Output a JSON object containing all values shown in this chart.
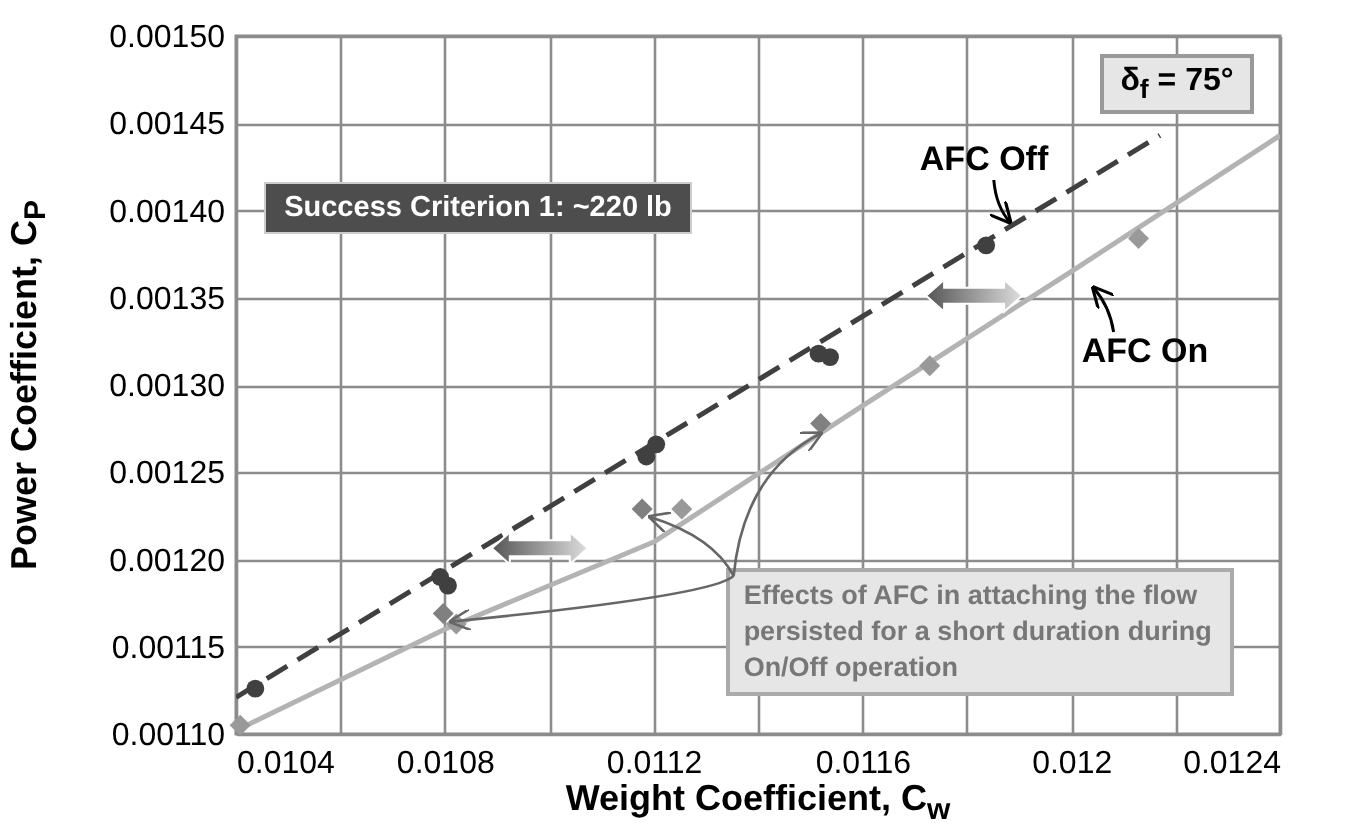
{
  "chart_data": {
    "type": "scatter",
    "xlabel": "Weight Coefficient, C$_{w}$",
    "ylabel": "Power Coefficient, C$_{P}$",
    "xlim": [
      0.0104,
      0.0124
    ],
    "xticks": [
      0.0104,
      {
        "value": 0.0106,
        "label": null
      },
      0.0108,
      {
        "value": 0.011,
        "label": null
      },
      0.0112,
      {
        "value": 0.0114,
        "label": null
      },
      0.0116,
      {
        "value": 0.0118,
        "label": null
      },
      0.012,
      {
        "value": 0.0122,
        "label": null
      },
      0.0124
    ],
    "ylim": [
      0.0011,
      0.0015
    ],
    "yticks": [
      {
        "value": 0.0011,
        "label": "0.00110"
      },
      {
        "value": 0.00115,
        "label": "0.00115"
      },
      {
        "value": 0.0012,
        "label": "0.00120"
      },
      {
        "value": 0.00125,
        "label": "0.00125"
      },
      {
        "value": 0.0013,
        "label": "0.00130"
      },
      {
        "value": 0.00135,
        "label": "0.00135"
      },
      {
        "value": 0.0014,
        "label": "0.00140"
      },
      {
        "value": 0.00145,
        "label": "0.00145"
      },
      {
        "value": 0.0015,
        "label": "0.00150"
      }
    ],
    "grid": true,
    "series": [
      {
        "type": "line",
        "color": "#404040",
        "line_style": "dashed",
        "x": [
          0.0104,
          0.01217
        ],
        "values": [
          0.001121,
          0.001443
        ]
      },
      {
        "type": "line",
        "color": "#b3b3b3",
        "line_style": "solid",
        "x": [
          0.0104,
          0.0108,
          0.0112,
          0.0116,
          0.012,
          0.0124
        ],
        "values": [
          0.001102,
          0.00116,
          0.00121,
          0.001288,
          0.001365,
          0.001443
        ]
      },
      {
        "color": "#404040",
        "marker": "circle",
        "x": [
          0.010437,
          0.010791,
          0.010806,
          0.011186,
          0.011205,
          0.011516,
          0.011538,
          0.011837
        ],
        "values": [
          0.001126,
          0.00119,
          0.001185,
          0.001259,
          0.001266,
          0.001318,
          0.001316,
          0.00138
        ]
      },
      {
        "color": "#999999",
        "marker": "diamond",
        "x": [
          0.010408,
          0.010822,
          0.011254,
          0.011729,
          0.012129
        ],
        "values": [
          0.001105,
          0.001163,
          0.001229,
          0.001311,
          0.001384
        ]
      },
      {
        "color": "#808080",
        "marker": "diamond",
        "x": [
          0.010797,
          0.011178,
          0.01152
        ],
        "values": [
          0.001169,
          0.001229,
          0.001278
        ]
      }
    ],
    "annotations": [
      "δ$_{f}$ = 75°",
      "Success Criterion 1:  ~220 lb",
      "AFC Off",
      "AFC On",
      {
        "text": "Effects of AFC in attaching the flow persisted for a short duration during On/Off operation",
        "x": 0.010797,
        "y": 0.001169
      }
    ]
  }
}
